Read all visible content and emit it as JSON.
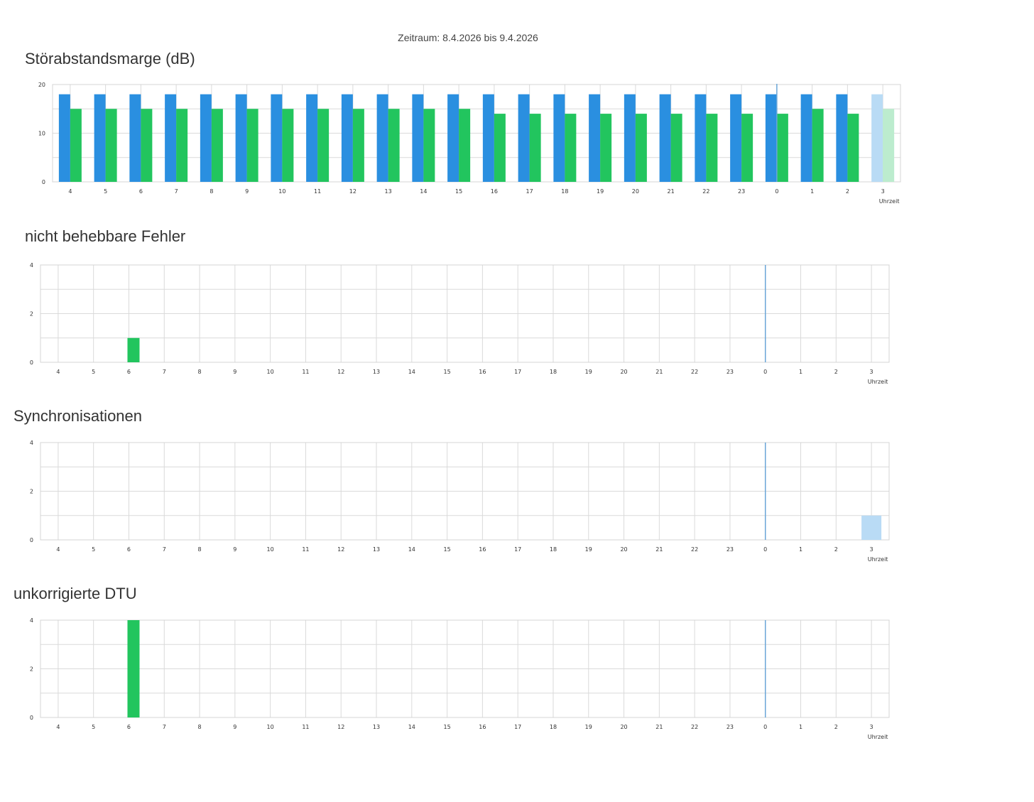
{
  "period": "Zeitraum: 8.4.2026 bis 9.4.2026",
  "colors": {
    "downstream": "#2a8fe0",
    "upstream": "#22c55e",
    "downstream_pending": "#b9dbf5",
    "upstream_pending": "#bcecce",
    "marker": "#6aa6d8"
  },
  "chart_data": [
    {
      "type": "bar",
      "title": "Störabstandsmarge (dB)",
      "xlabel": "Uhrzeit",
      "ylabel": "",
      "categories": [
        "4",
        "5",
        "6",
        "7",
        "8",
        "9",
        "10",
        "11",
        "12",
        "13",
        "14",
        "15",
        "16",
        "17",
        "18",
        "19",
        "20",
        "21",
        "22",
        "23",
        "0",
        "1",
        "2",
        "3"
      ],
      "ylim": [
        0,
        20
      ],
      "yticks": [
        0,
        10,
        20
      ],
      "grid": true,
      "marker_category": "0",
      "pending_category": "3",
      "series": [
        {
          "color": "#2a8fe0",
          "values": [
            18,
            18,
            18,
            18,
            18,
            18,
            18,
            18,
            18,
            18,
            18,
            18,
            18,
            18,
            18,
            18,
            18,
            18,
            18,
            18,
            18,
            18,
            18,
            18
          ]
        },
        {
          "color": "#22c55e",
          "values": [
            15,
            15,
            15,
            15,
            15,
            15,
            15,
            15,
            15,
            15,
            15,
            15,
            14,
            14,
            14,
            14,
            14,
            14,
            14,
            14,
            14,
            15,
            14,
            15
          ]
        }
      ]
    },
    {
      "type": "bar",
      "title": "nicht behebbare Fehler",
      "xlabel": "Uhrzeit",
      "ylabel": "",
      "categories": [
        "4",
        "5",
        "6",
        "7",
        "8",
        "9",
        "10",
        "11",
        "12",
        "13",
        "14",
        "15",
        "16",
        "17",
        "18",
        "19",
        "20",
        "21",
        "22",
        "23",
        "0",
        "1",
        "2",
        "3"
      ],
      "ylim": [
        0,
        4
      ],
      "yticks": [
        0,
        2,
        4
      ],
      "grid": true,
      "marker_category": "0",
      "pending_category": "3",
      "series": [
        {
          "color": "#2a8fe0",
          "values": [
            0,
            0,
            0,
            0,
            0,
            0,
            0,
            0,
            0,
            0,
            0,
            0,
            0,
            0,
            0,
            0,
            0,
            0,
            0,
            0,
            0,
            0,
            0,
            0
          ]
        },
        {
          "color": "#22c55e",
          "values": [
            0,
            0,
            1,
            0,
            0,
            0,
            0,
            0,
            0,
            0,
            0,
            0,
            0,
            0,
            0,
            0,
            0,
            0,
            0,
            0,
            0,
            0,
            0,
            0
          ]
        }
      ]
    },
    {
      "type": "bar",
      "title": "Synchronisationen",
      "xlabel": "Uhrzeit",
      "ylabel": "",
      "categories": [
        "4",
        "5",
        "6",
        "7",
        "8",
        "9",
        "10",
        "11",
        "12",
        "13",
        "14",
        "15",
        "16",
        "17",
        "18",
        "19",
        "20",
        "21",
        "22",
        "23",
        "0",
        "1",
        "2",
        "3"
      ],
      "ylim": [
        0,
        4
      ],
      "yticks": [
        0,
        2,
        4
      ],
      "grid": true,
      "marker_category": "0",
      "pending_category": "3",
      "series": [
        {
          "color": "#2a8fe0",
          "values": [
            0,
            0,
            0,
            0,
            0,
            0,
            0,
            0,
            0,
            0,
            0,
            0,
            0,
            0,
            0,
            0,
            0,
            0,
            0,
            0,
            0,
            0,
            0,
            1
          ]
        }
      ]
    },
    {
      "type": "bar",
      "title": "unkorrigierte DTU",
      "xlabel": "Uhrzeit",
      "ylabel": "",
      "categories": [
        "4",
        "5",
        "6",
        "7",
        "8",
        "9",
        "10",
        "11",
        "12",
        "13",
        "14",
        "15",
        "16",
        "17",
        "18",
        "19",
        "20",
        "21",
        "22",
        "23",
        "0",
        "1",
        "2",
        "3"
      ],
      "ylim": [
        0,
        4
      ],
      "yticks": [
        0,
        2,
        4
      ],
      "grid": true,
      "marker_category": "0",
      "pending_category": "3",
      "series": [
        {
          "color": "#2a8fe0",
          "values": [
            0,
            0,
            0,
            0,
            0,
            0,
            0,
            0,
            0,
            0,
            0,
            0,
            0,
            0,
            0,
            0,
            0,
            0,
            0,
            0,
            0,
            0,
            0,
            0
          ]
        },
        {
          "color": "#22c55e",
          "values": [
            0,
            0,
            4,
            0,
            0,
            0,
            0,
            0,
            0,
            0,
            0,
            0,
            0,
            0,
            0,
            0,
            0,
            0,
            0,
            0,
            0,
            0,
            0,
            0
          ]
        }
      ]
    }
  ]
}
